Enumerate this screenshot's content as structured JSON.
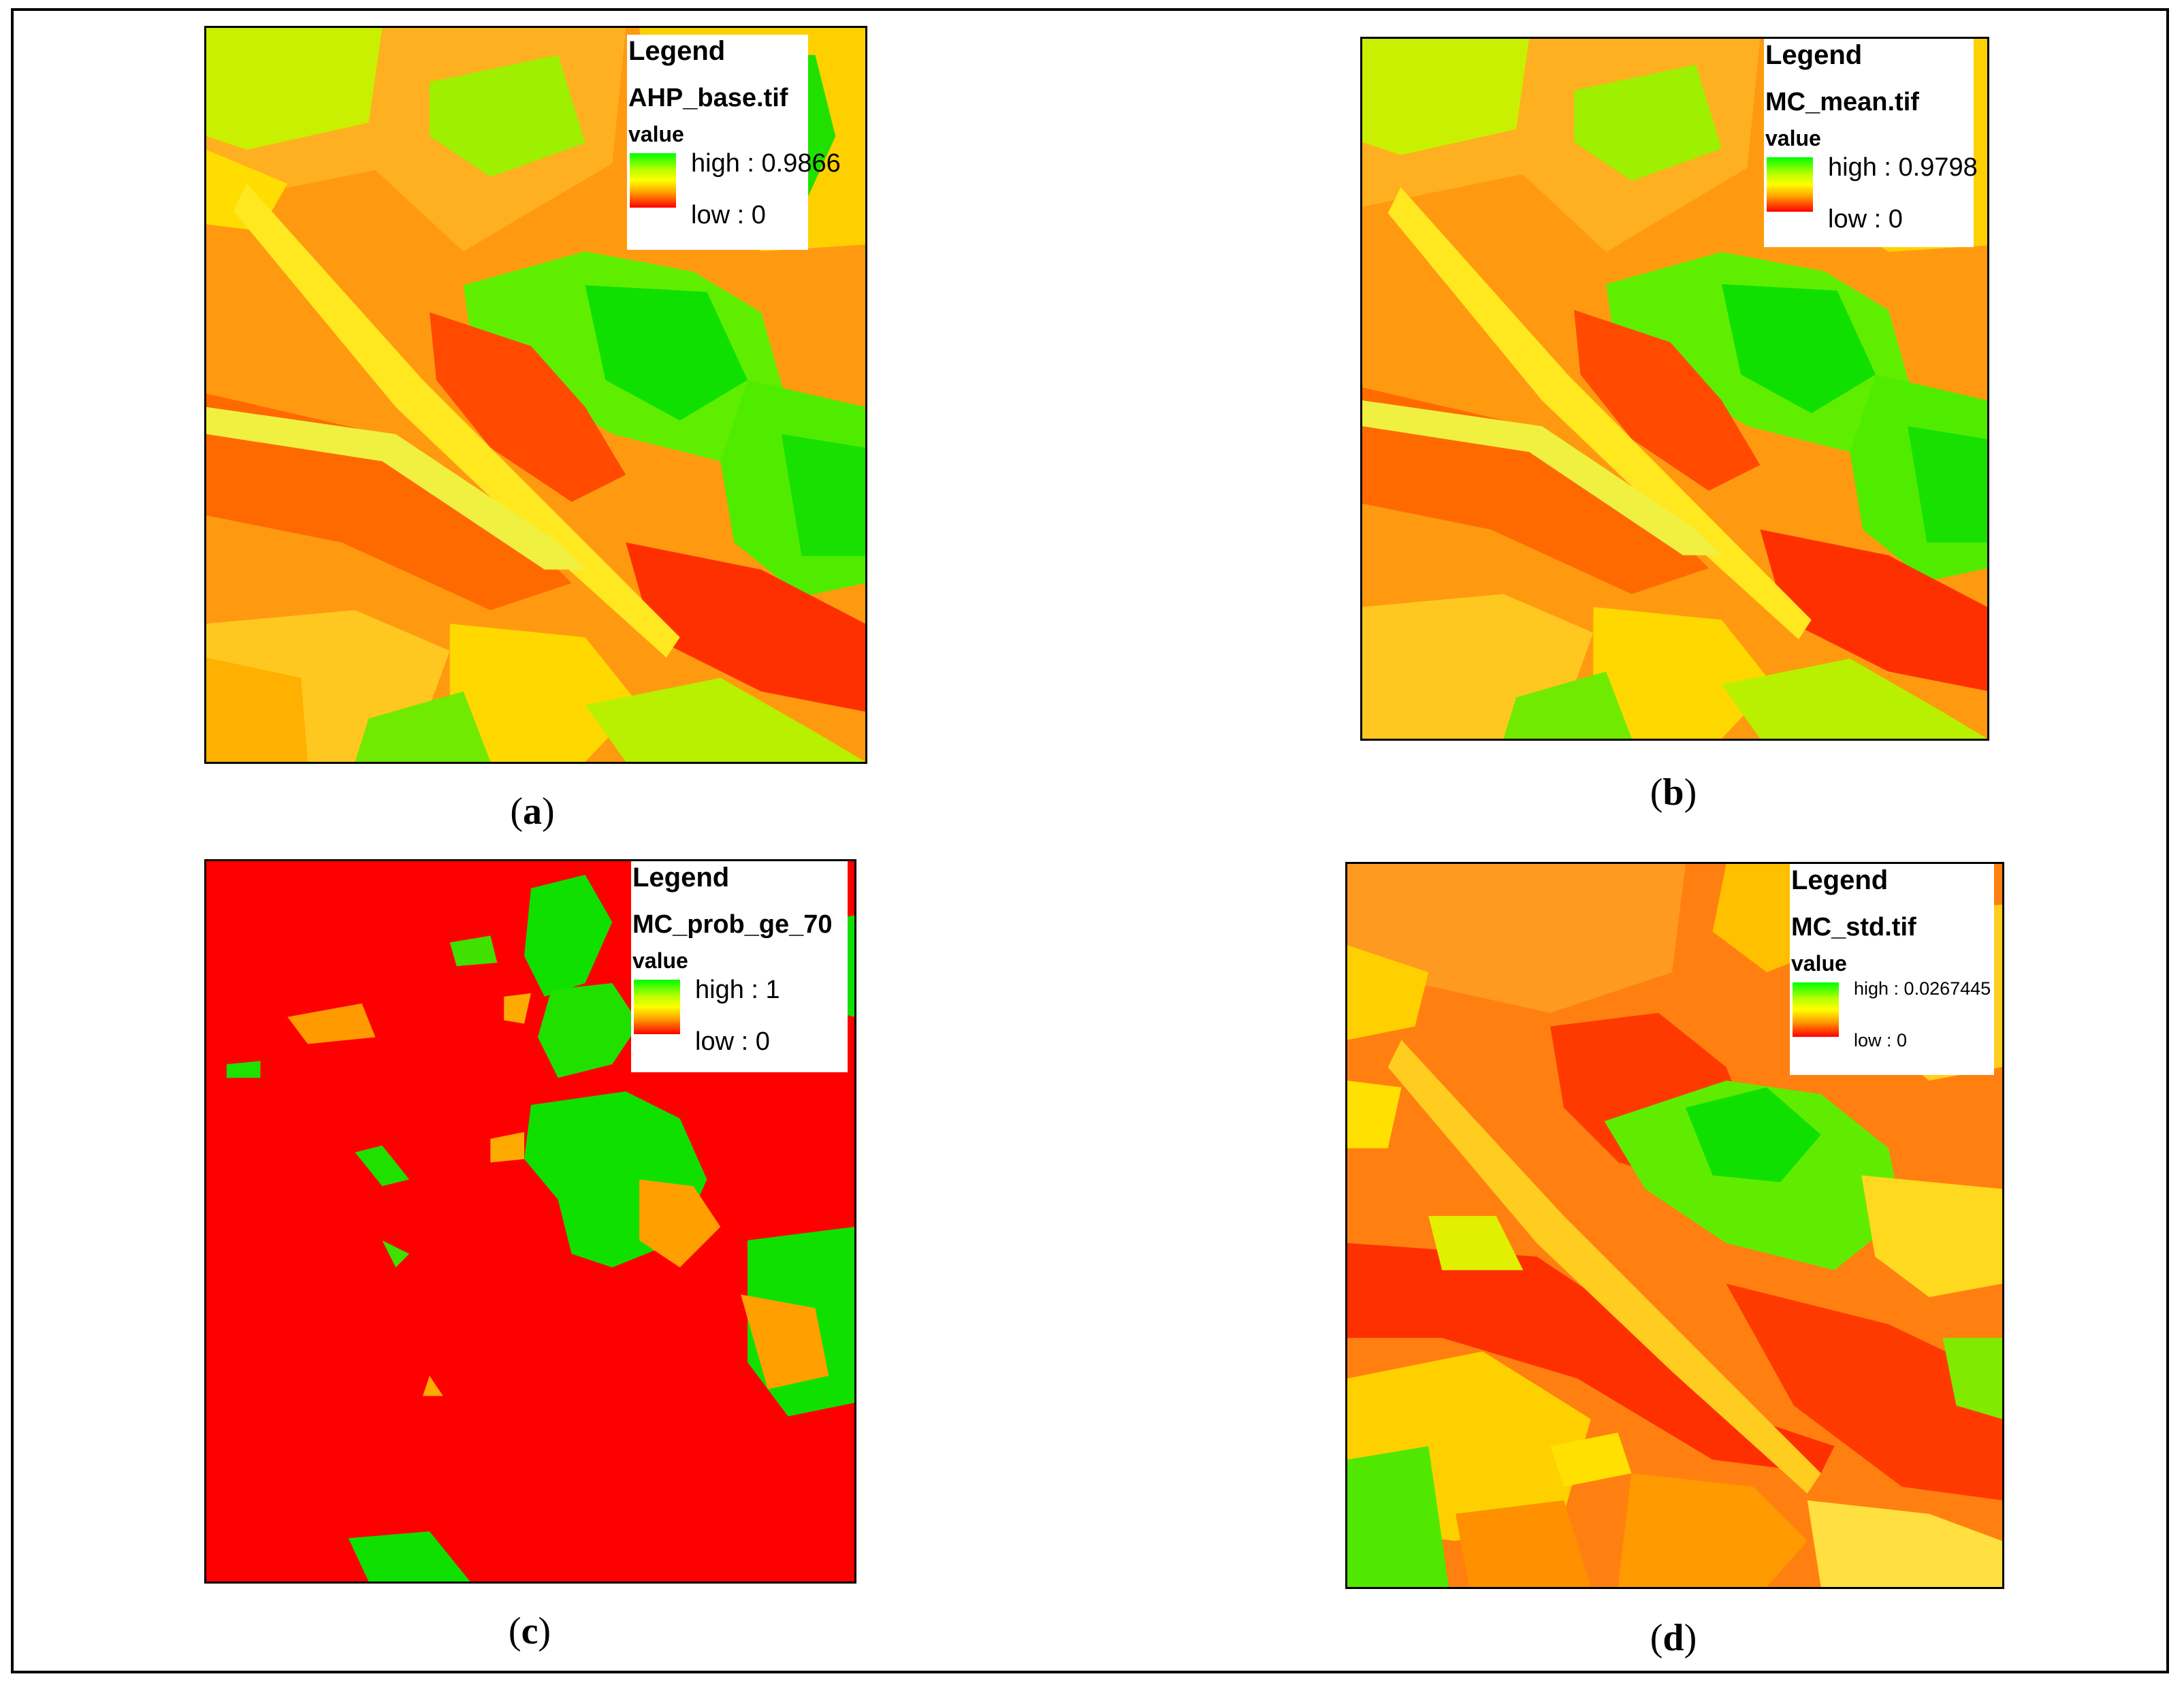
{
  "panels": [
    {
      "id": "a",
      "caption_letter": "a",
      "legend": {
        "title": "Legend",
        "layer": "AHP_base.tif",
        "field": "value",
        "high": "high : 0.9866",
        "low": "low : 0"
      }
    },
    {
      "id": "b",
      "caption_letter": "b",
      "legend": {
        "title": "Legend",
        "layer": "MC_mean.tif",
        "field": "value",
        "high": "high : 0.9798",
        "low": "low : 0"
      }
    },
    {
      "id": "c",
      "caption_letter": "c",
      "legend": {
        "title": "Legend",
        "layer": "MC_prob_ge_70",
        "field": "value",
        "high": "high : 1",
        "low": "low : 0"
      }
    },
    {
      "id": "d",
      "caption_letter": "d",
      "legend": {
        "title": "Legend",
        "layer": "MC_std.tif",
        "field": "value",
        "high": "high : 0.0267445",
        "low": "low : 0"
      }
    }
  ],
  "colors": {
    "high": "#00ff00",
    "mid": "#ffff00",
    "low": "#ff0000",
    "orange": "#ff8c00"
  }
}
